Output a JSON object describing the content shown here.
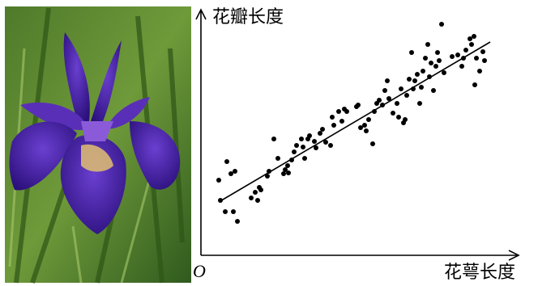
{
  "chart_data": {
    "type": "scatter",
    "y_label": "花瓣长度",
    "x_label": "花萼长度",
    "origin_label": "O",
    "color": "#000000",
    "xlim": [
      0,
      390
    ],
    "ylim": [
      0,
      290
    ],
    "x": [
      22,
      32,
      37,
      42,
      24,
      30,
      40,
      45,
      62,
      67,
      70,
      72,
      74,
      82,
      84,
      90,
      95,
      102,
      104,
      107,
      108,
      112,
      115,
      118,
      124,
      126,
      128,
      132,
      134,
      140,
      142,
      147,
      150,
      154,
      160,
      162,
      164,
      170,
      174,
      177,
      180,
      192,
      194,
      197,
      202,
      204,
      207,
      212,
      214,
      217,
      220,
      224,
      227,
      230,
      232,
      237,
      242,
      244,
      247,
      250,
      252,
      254,
      257,
      260,
      262,
      264,
      267,
      270,
      272,
      274,
      277,
      280,
      282,
      284,
      287,
      290,
      292,
      294,
      297,
      300,
      310,
      317,
      322,
      324,
      327,
      332,
      334,
      337,
      338,
      340,
      344,
      348,
      350
    ],
    "values": [
      93,
      116,
      101,
      104,
      68,
      54,
      54,
      42,
      71,
      78,
      68,
      84,
      81,
      98,
      104,
      144,
      120,
      101,
      106,
      111,
      102,
      118,
      128,
      136,
      144,
      134,
      120,
      144,
      148,
      141,
      133,
      151,
      156,
      140,
      136,
      171,
      161,
      178,
      166,
      181,
      178,
      184,
      186,
      158,
      161,
      154,
      168,
      138,
      178,
      188,
      192,
      186,
      204,
      216,
      194,
      176,
      188,
      171,
      206,
      164,
      168,
      198,
      218,
      251,
      206,
      216,
      224,
      188,
      208,
      228,
      244,
      261,
      221,
      238,
      204,
      234,
      251,
      241,
      286,
      226,
      246,
      248,
      234,
      244,
      254,
      268,
      261,
      271,
      211,
      244,
      228,
      252,
      241
    ],
    "fit_line": {
      "x": [
        22,
        357
      ],
      "values": [
        66,
        264
      ]
    }
  }
}
